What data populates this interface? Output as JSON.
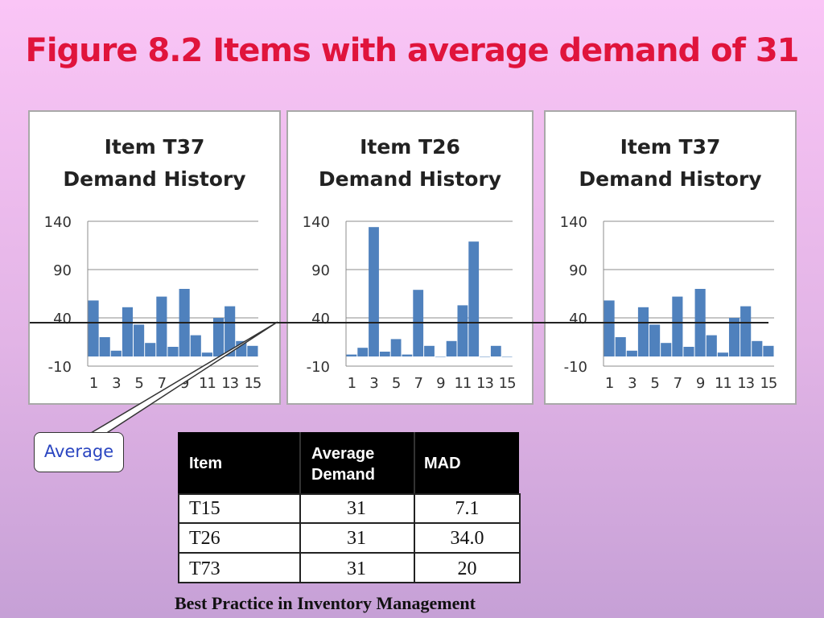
{
  "slide": {
    "title": "Figure 8.2 Items with average demand of 31",
    "footer": "Best Practice in Inventory Management",
    "average_callout": "Average",
    "average_value": 31
  },
  "chart_data": [
    {
      "type": "bar",
      "title": "Item T37\nDemand History",
      "x": [
        1,
        2,
        3,
        4,
        5,
        6,
        7,
        8,
        9,
        10,
        11,
        12,
        13,
        14,
        15
      ],
      "x_tick_labels": [
        "1",
        "3",
        "5",
        "7",
        "9",
        "11",
        "13",
        "15"
      ],
      "values": [
        58,
        20,
        6,
        51,
        33,
        14,
        62,
        10,
        70,
        22,
        4,
        40,
        52,
        16,
        11
      ],
      "ylim": [
        -10,
        140
      ],
      "y_ticks": [
        -10,
        40,
        90,
        140
      ],
      "grid": true,
      "bar_color": "#4f81bd"
    },
    {
      "type": "bar",
      "title": "Item T26\nDemand History",
      "x": [
        1,
        2,
        3,
        4,
        5,
        6,
        7,
        8,
        9,
        10,
        11,
        12,
        13,
        14,
        15
      ],
      "x_tick_labels": [
        "1",
        "3",
        "5",
        "7",
        "9",
        "11",
        "13",
        "15"
      ],
      "values": [
        2,
        9,
        134,
        5,
        18,
        2,
        69,
        11,
        0,
        16,
        53,
        119,
        0,
        11,
        0
      ],
      "ylim": [
        -10,
        140
      ],
      "y_ticks": [
        -10,
        40,
        90,
        140
      ],
      "grid": true,
      "bar_color": "#4f81bd"
    },
    {
      "type": "bar",
      "title": "Item T37\nDemand History",
      "x": [
        1,
        2,
        3,
        4,
        5,
        6,
        7,
        8,
        9,
        10,
        11,
        12,
        13,
        14,
        15
      ],
      "x_tick_labels": [
        "1",
        "3",
        "5",
        "7",
        "9",
        "11",
        "13",
        "15"
      ],
      "values": [
        58,
        20,
        6,
        51,
        33,
        14,
        62,
        10,
        70,
        22,
        4,
        40,
        52,
        16,
        11
      ],
      "ylim": [
        -10,
        140
      ],
      "y_ticks": [
        -10,
        40,
        90,
        140
      ],
      "grid": true,
      "bar_color": "#4f81bd"
    }
  ],
  "table": {
    "headers": {
      "item": "Item",
      "avg_line1": "Average",
      "avg_line2": "Demand",
      "mad": "MAD"
    },
    "rows": [
      {
        "item": "T15",
        "avg": "31",
        "mad": "7.1"
      },
      {
        "item": "T26",
        "avg": "31",
        "mad": "34.0"
      },
      {
        "item": "T73",
        "avg": "31",
        "mad": "20"
      }
    ]
  }
}
